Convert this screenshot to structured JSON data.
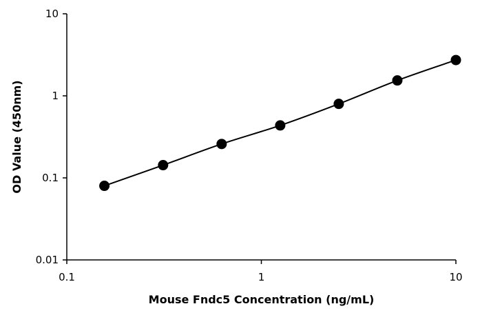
{
  "chart_data": {
    "type": "line",
    "title": "",
    "xlabel": "Mouse Fndc5 Concentration (ng/mL)",
    "ylabel": "OD Value (450nm)",
    "x_scale": "log",
    "y_scale": "log",
    "xlim": [
      0.1,
      10
    ],
    "ylim": [
      0.01,
      10
    ],
    "x_ticks": [
      {
        "value": 0.1,
        "label": "0.1"
      },
      {
        "value": 1,
        "label": "1"
      },
      {
        "value": 10,
        "label": "10"
      }
    ],
    "y_ticks": [
      {
        "value": 0.01,
        "label": "0.01"
      },
      {
        "value": 0.1,
        "label": "0.1"
      },
      {
        "value": 1,
        "label": "1"
      },
      {
        "value": 10,
        "label": "10"
      }
    ],
    "grid": false,
    "legend": "none",
    "marker": "filled-circle",
    "colors": {
      "series": "#000000",
      "axis": "#000000",
      "background": "#ffffff"
    },
    "series": [
      {
        "x": [
          0.156,
          0.3125,
          0.625,
          1.25,
          2.5,
          5,
          10
        ],
        "y": [
          0.08,
          0.143,
          0.259,
          0.436,
          0.798,
          1.54,
          2.73
        ]
      }
    ]
  }
}
